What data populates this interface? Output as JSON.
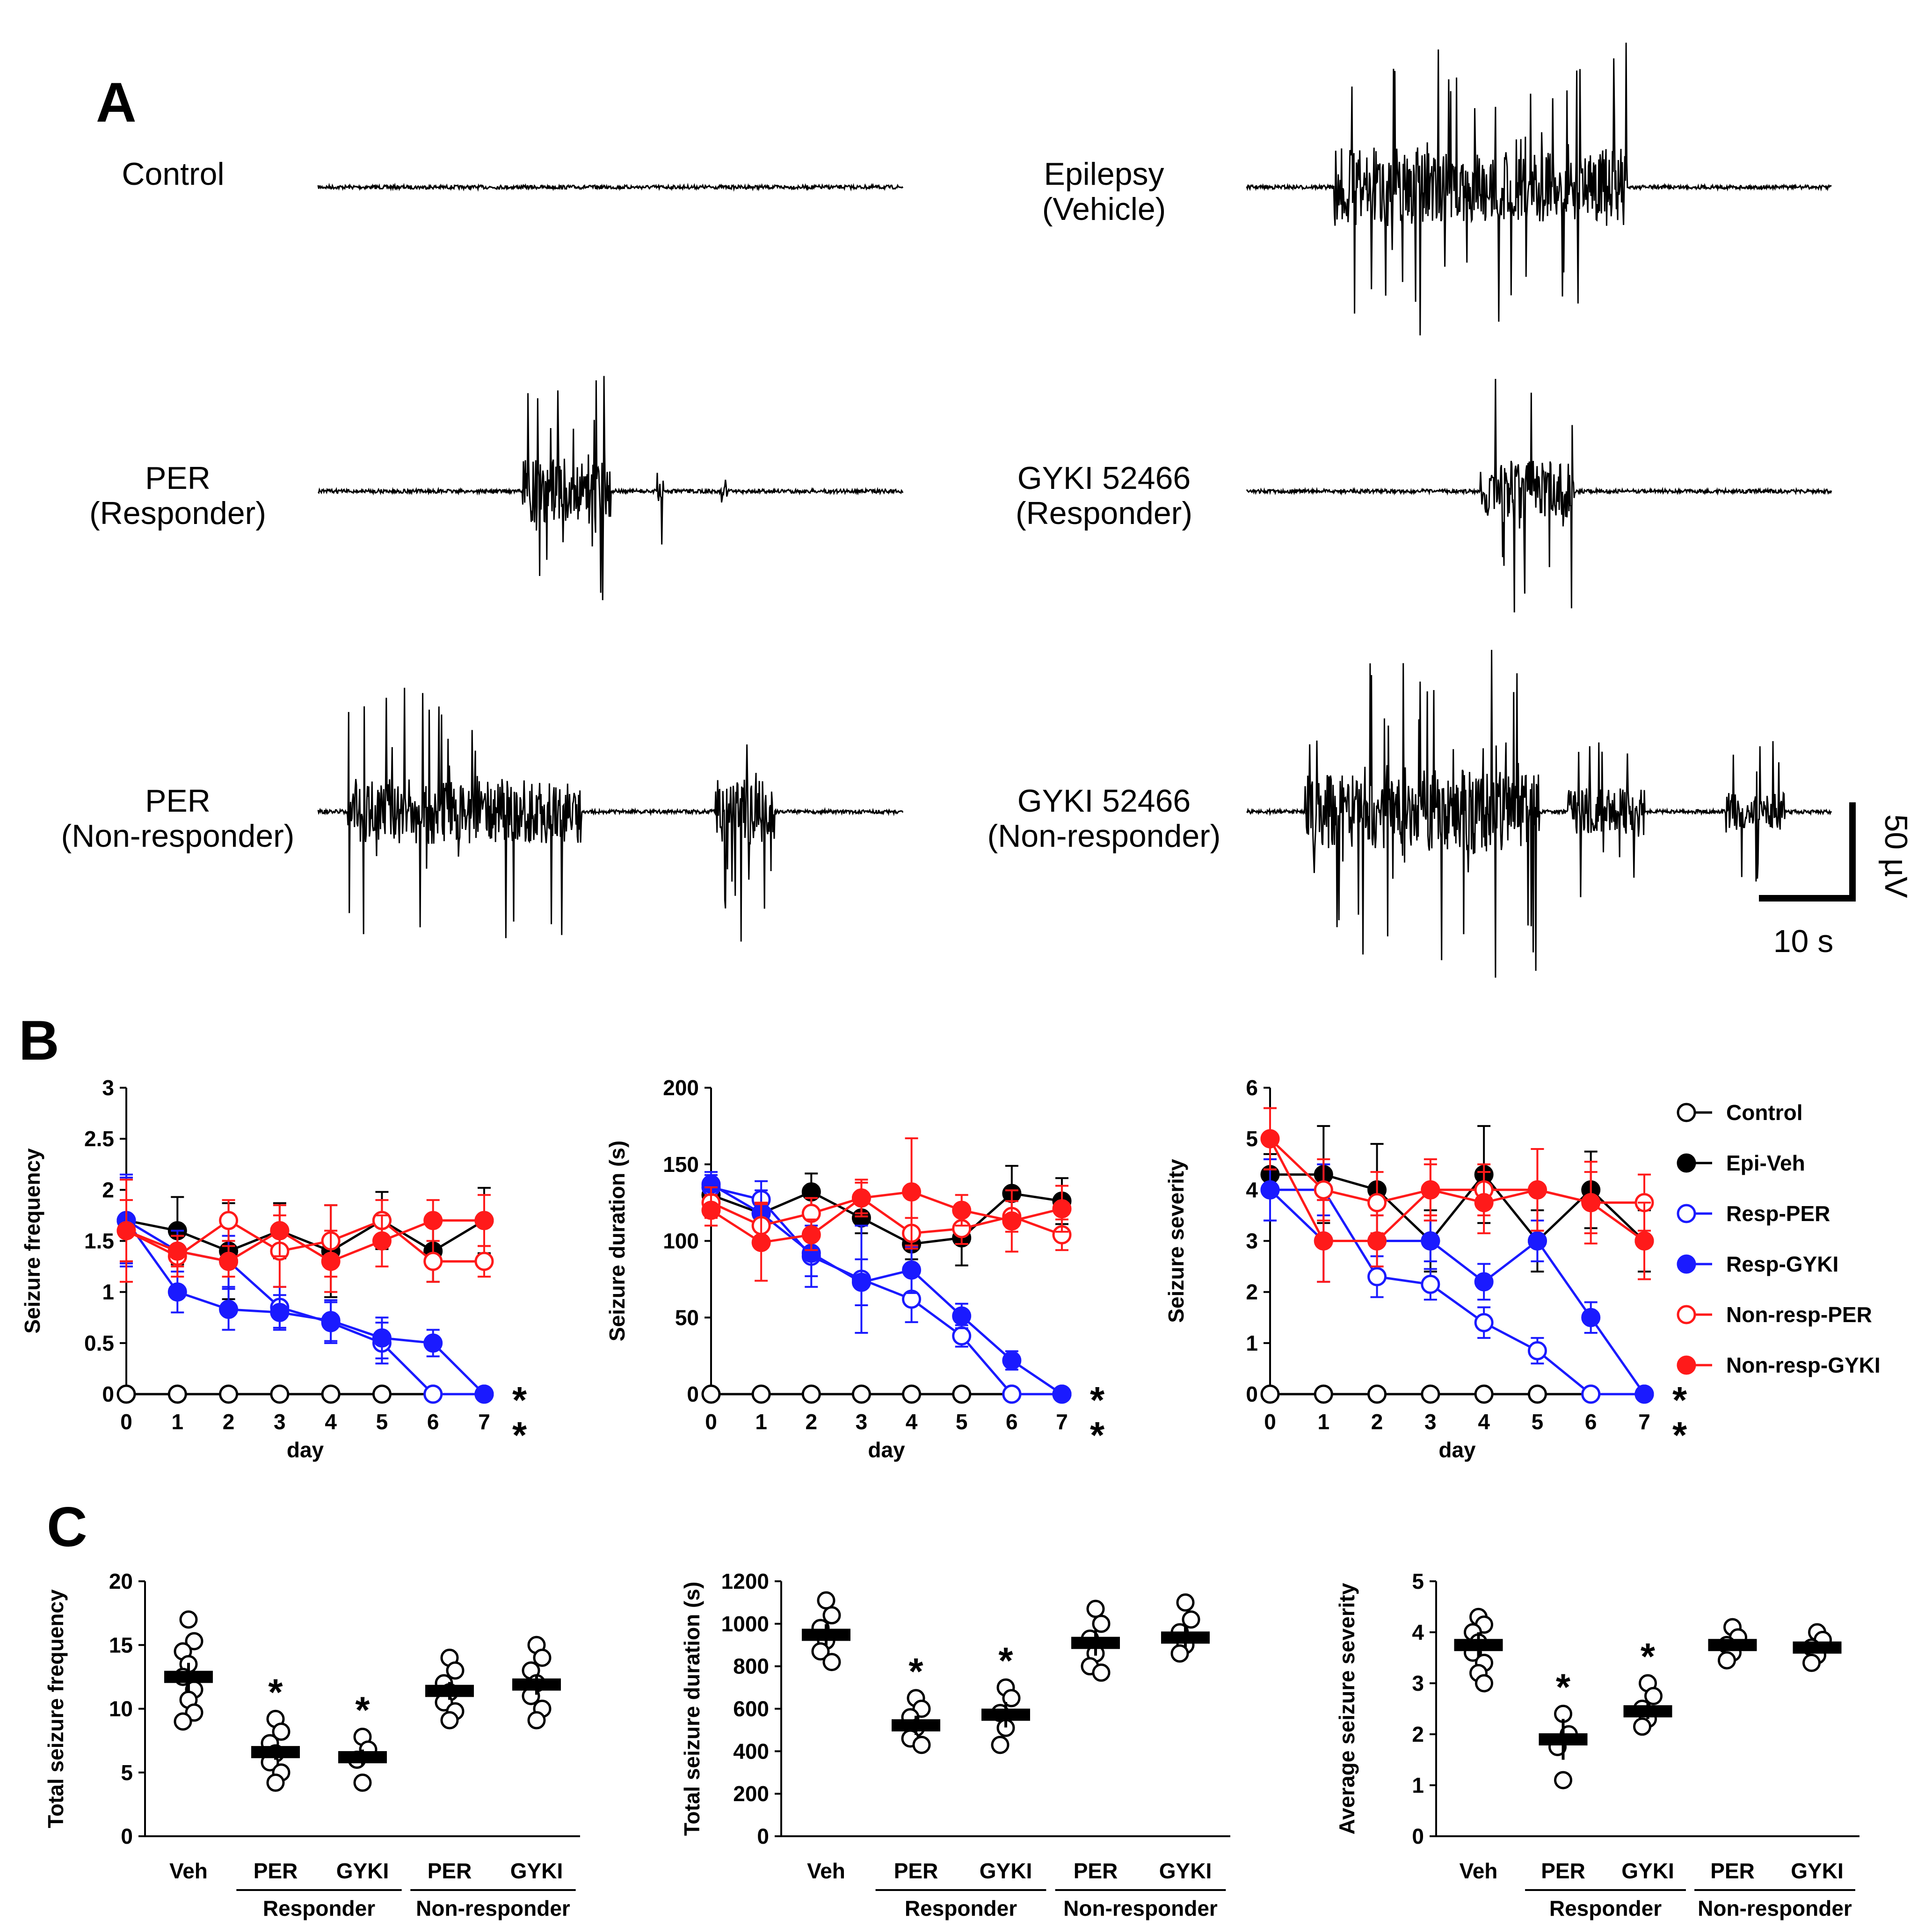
{
  "panels": {
    "a": "A",
    "b": "B",
    "c": "C"
  },
  "colors": {
    "black": "#000000",
    "blue": "#1a1aff",
    "red": "#ff1a1a"
  },
  "traces": [
    {
      "id": "control",
      "line1": "Control",
      "line2": ""
    },
    {
      "id": "epilepsy",
      "line1": "Epilepsy",
      "line2": "(Vehicle)"
    },
    {
      "id": "per_resp",
      "line1": "PER",
      "line2": "(Responder)"
    },
    {
      "id": "gyki_resp",
      "line1": "GYKI 52466",
      "line2": "(Responder)"
    },
    {
      "id": "per_nonresp",
      "line1": "PER",
      "line2": "(Non-responder)"
    },
    {
      "id": "gyki_nonresp",
      "line1": "GYKI 52466",
      "line2": "(Non-responder)"
    }
  ],
  "scalebar": {
    "vertical": "50 µV",
    "horizontal": "10 s"
  },
  "legend": [
    "Control",
    "Epi-Veh",
    "Resp-PER",
    "Resp-GYKI",
    "Non-resp-PER",
    "Non-resp-GYKI"
  ],
  "significance_mark": "*",
  "chart_data": [
    {
      "type": "line",
      "panel": "B",
      "xlabel": "day",
      "ylabel": "Seizure frequency",
      "x": [
        0,
        1,
        2,
        3,
        4,
        5,
        6,
        7
      ],
      "xticks": [
        "0",
        "1",
        "2",
        "3",
        "4",
        "5",
        "6",
        "7"
      ],
      "ylim": [
        0,
        3
      ],
      "yticks": [
        "0",
        "0.5",
        "1",
        "1.5",
        "2",
        "2.5",
        "3"
      ],
      "series": [
        {
          "name": "Control",
          "color": "#000000",
          "filled": false,
          "values": [
            0,
            0,
            0,
            0,
            0,
            0,
            0,
            0
          ],
          "errors": [
            0,
            0,
            0,
            0,
            0,
            0,
            0,
            0
          ]
        },
        {
          "name": "Epi-Veh",
          "color": "#000000",
          "filled": true,
          "values": [
            1.7,
            1.6,
            1.4,
            1.6,
            1.4,
            1.7,
            1.4,
            1.7
          ],
          "errors": [
            0.4,
            0.33,
            0.47,
            0.27,
            0.45,
            0.28,
            0.3,
            0.32
          ]
        },
        {
          "name": "Resp-PER",
          "color": "#1a1aff",
          "filled": false,
          "values": [
            1.7,
            1.4,
            1.3,
            0.85,
            0.7,
            0.5,
            0,
            0
          ],
          "errors": [
            0.42,
            0.2,
            0.25,
            0.2,
            0.2,
            0.2,
            0,
            0
          ]
        },
        {
          "name": "Resp-GYKI",
          "color": "#1a1aff",
          "filled": true,
          "values": [
            1.7,
            1.0,
            0.83,
            0.8,
            0.72,
            0.55,
            0.5,
            0
          ],
          "errors": [
            0.45,
            0.2,
            0.2,
            0.17,
            0.2,
            0.2,
            0.13,
            0
          ]
        },
        {
          "name": "Non-resp-PER",
          "color": "#ff1a1a",
          "filled": false,
          "values": [
            1.6,
            1.35,
            1.7,
            1.4,
            1.5,
            1.7,
            1.3,
            1.3
          ],
          "errors": [
            0.3,
            0.2,
            0.2,
            0.35,
            0.35,
            0.2,
            0.2,
            0.15
          ]
        },
        {
          "name": "Non-resp-GYKI",
          "color": "#ff1a1a",
          "filled": true,
          "values": [
            1.6,
            1.4,
            1.3,
            1.6,
            1.3,
            1.5,
            1.7,
            1.7
          ],
          "errors": [
            0.5,
            0.15,
            0.15,
            0.25,
            0.3,
            0.25,
            0.2,
            0.25
          ]
        }
      ]
    },
    {
      "type": "line",
      "panel": "B",
      "xlabel": "day",
      "ylabel": "Seizure duration (s)",
      "x": [
        0,
        1,
        2,
        3,
        4,
        5,
        6,
        7
      ],
      "xticks": [
        "0",
        "1",
        "2",
        "3",
        "4",
        "5",
        "6",
        "7"
      ],
      "ylim": [
        0,
        200
      ],
      "yticks": [
        "0",
        "50",
        "100",
        "150",
        "200"
      ],
      "series": [
        {
          "name": "Control",
          "color": "#000000",
          "filled": false,
          "values": [
            0,
            0,
            0,
            0,
            0,
            0,
            0,
            0
          ],
          "errors": [
            0,
            0,
            0,
            0,
            0,
            0,
            0,
            0
          ]
        },
        {
          "name": "Epi-Veh",
          "color": "#000000",
          "filled": true,
          "values": [
            130,
            118,
            132,
            115,
            98,
            102,
            131,
            126
          ],
          "errors": [
            10,
            12,
            12,
            10,
            10,
            18,
            18,
            15
          ]
        },
        {
          "name": "Resp-PER",
          "color": "#1a1aff",
          "filled": false,
          "values": [
            135,
            127,
            90,
            75,
            62,
            38,
            0,
            0
          ],
          "errors": [
            8,
            12,
            20,
            35,
            15,
            7,
            0,
            0
          ]
        },
        {
          "name": "Resp-GYKI",
          "color": "#1a1aff",
          "filled": true,
          "values": [
            137,
            118,
            92,
            73,
            81,
            51,
            22,
            0
          ],
          "errors": [
            8,
            15,
            15,
            15,
            15,
            8,
            6,
            0
          ]
        },
        {
          "name": "Non-resp-PER",
          "color": "#ff1a1a",
          "filled": false,
          "values": [
            125,
            110,
            118,
            128,
            105,
            108,
            116,
            104
          ],
          "errors": [
            10,
            15,
            10,
            10,
            10,
            10,
            10,
            10
          ]
        },
        {
          "name": "Non-resp-GYKI",
          "color": "#ff1a1a",
          "filled": true,
          "values": [
            120,
            99,
            104,
            128,
            132,
            120,
            113,
            121
          ],
          "errors": [
            10,
            25,
            10,
            12,
            35,
            10,
            20,
            15
          ]
        }
      ]
    },
    {
      "type": "line",
      "panel": "B",
      "xlabel": "day",
      "ylabel": "Seizure severity",
      "x": [
        0,
        1,
        2,
        3,
        4,
        5,
        6,
        7
      ],
      "xticks": [
        "0",
        "1",
        "2",
        "3",
        "4",
        "5",
        "6",
        "7"
      ],
      "ylim": [
        0,
        6
      ],
      "yticks": [
        "0",
        "1",
        "2",
        "3",
        "4",
        "5",
        "6"
      ],
      "series": [
        {
          "name": "Control",
          "color": "#000000",
          "filled": false,
          "values": [
            0,
            0,
            0,
            0,
            0,
            0,
            0,
            0
          ],
          "errors": [
            0,
            0,
            0,
            0,
            0,
            0,
            0,
            0
          ]
        },
        {
          "name": "Epi-Veh",
          "color": "#000000",
          "filled": true,
          "values": [
            4.3,
            4.3,
            4.0,
            3.0,
            4.3,
            3.0,
            4.0,
            3.0
          ],
          "errors": [
            0.4,
            0.95,
            0.9,
            0.6,
            0.95,
            0.6,
            0.75,
            0.6
          ]
        },
        {
          "name": "Resp-PER",
          "color": "#1a1aff",
          "filled": false,
          "values": [
            4.0,
            4.0,
            2.3,
            2.15,
            1.4,
            0.85,
            0,
            0
          ],
          "errors": [
            0.6,
            0.5,
            0.4,
            0.3,
            0.3,
            0.25,
            0,
            0
          ]
        },
        {
          "name": "Resp-GYKI",
          "color": "#1a1aff",
          "filled": true,
          "values": [
            4.0,
            3.0,
            3.0,
            3.0,
            2.2,
            3.0,
            1.5,
            0
          ],
          "errors": [
            0.6,
            0.8,
            0.5,
            0.4,
            0.35,
            0.4,
            0.3,
            0
          ]
        },
        {
          "name": "Non-resp-PER",
          "color": "#ff1a1a",
          "filled": false,
          "values": [
            5.0,
            4.0,
            3.75,
            4.0,
            4.0,
            4.0,
            3.75,
            3.75
          ],
          "errors": [
            0.6,
            0.6,
            0.6,
            0.6,
            0.5,
            0.8,
            0.6,
            0.55
          ]
        },
        {
          "name": "Non-resp-GYKI",
          "color": "#ff1a1a",
          "filled": true,
          "values": [
            5.0,
            3.0,
            3.0,
            4.0,
            3.75,
            4.0,
            3.75,
            3.0
          ],
          "errors": [
            0.6,
            0.8,
            0.5,
            0.5,
            0.6,
            0.8,
            0.8,
            0.75
          ]
        }
      ]
    },
    {
      "type": "scatter",
      "panel": "C",
      "ylabel": "Total seizure frequency",
      "categories": [
        "Veh",
        "PER",
        "GYKI",
        "PER",
        "GYKI"
      ],
      "groups": [
        "",
        "Responder",
        "Non-responder"
      ],
      "ylim": [
        0,
        20
      ],
      "yticks": [
        "0",
        "5",
        "10",
        "15",
        "20"
      ],
      "means": [
        12.5,
        6.6,
        6.2,
        11.4,
        11.9
      ],
      "sems": [
        1.1,
        0.6,
        0.6,
        0.7,
        0.8
      ],
      "points": [
        [
          17,
          15.3,
          14.5,
          13.5,
          12.5,
          11.5,
          10.7,
          9.7,
          9
        ],
        [
          9.2,
          8.2,
          7.3,
          6.5,
          5.8,
          5,
          4.2
        ],
        [
          7.8,
          6.8,
          6,
          4.2
        ],
        [
          14,
          13,
          12,
          11.3,
          10.5,
          9.8,
          9.1
        ],
        [
          15,
          14,
          13,
          12,
          11,
          10,
          9.1
        ]
      ],
      "significant": [
        false,
        true,
        true,
        false,
        false
      ]
    },
    {
      "type": "scatter",
      "panel": "C",
      "ylabel": "Total seizure duration (s)",
      "categories": [
        "Veh",
        "PER",
        "GYKI",
        "PER",
        "GYKI"
      ],
      "groups": [
        "",
        "Responder",
        "Non-responder"
      ],
      "ylim": [
        0,
        1200
      ],
      "yticks": [
        "0",
        "200",
        "400",
        "600",
        "800",
        "1000",
        "1200"
      ],
      "means": [
        948,
        522,
        572,
        910,
        935
      ],
      "sems": [
        50,
        45,
        60,
        60,
        50
      ],
      "points": [
        [
          1110,
          1040,
          980,
          920,
          870,
          820
        ],
        [
          650,
          600,
          560,
          510,
          460,
          430
        ],
        [
          700,
          650,
          580,
          510,
          430
        ],
        [
          1070,
          1000,
          930,
          860,
          800,
          770
        ],
        [
          1100,
          1020,
          960,
          900,
          860
        ]
      ],
      "significant": [
        false,
        true,
        true,
        false,
        false
      ]
    },
    {
      "type": "scatter",
      "panel": "C",
      "ylabel": "Average seizure severity",
      "categories": [
        "Veh",
        "PER",
        "GYKI",
        "PER",
        "GYKI"
      ],
      "groups": [
        "",
        "Responder",
        "Non-responder"
      ],
      "ylim": [
        0,
        5
      ],
      "yticks": [
        "0",
        "1",
        "2",
        "3",
        "4",
        "5"
      ],
      "means": [
        3.75,
        1.9,
        2.45,
        3.75,
        3.7
      ],
      "sems": [
        0.25,
        0.4,
        0.15,
        0.1,
        0.1
      ],
      "points": [
        [
          4.3,
          4.15,
          4.0,
          3.8,
          3.6,
          3.4,
          3.2,
          3.0
        ],
        [
          2.4,
          2.0,
          1.75,
          1.1
        ],
        [
          3.0,
          2.75,
          2.5,
          2.3,
          2.15
        ],
        [
          4.1,
          3.9,
          3.75,
          3.6,
          3.45
        ],
        [
          4.0,
          3.85,
          3.7,
          3.55,
          3.4
        ]
      ],
      "significant": [
        false,
        true,
        true,
        false,
        false
      ]
    }
  ]
}
